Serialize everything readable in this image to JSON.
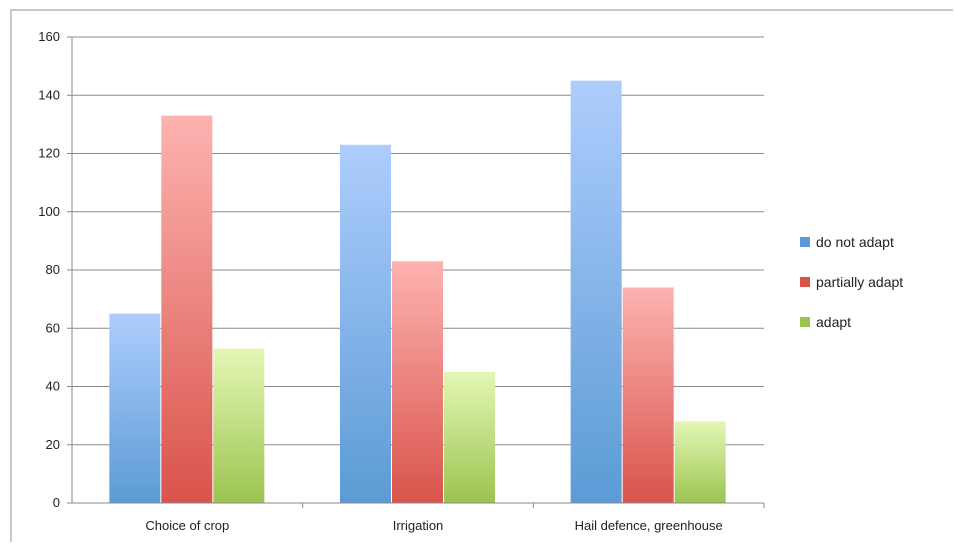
{
  "chart_data": {
    "type": "bar",
    "title": "",
    "xlabel": "",
    "ylabel": "",
    "categories": [
      "Choice of crop",
      "Irrigation",
      "Hail defence, greenhouse"
    ],
    "series": [
      {
        "name": "do not adapt",
        "values": [
          65,
          123,
          145
        ],
        "color": "#5b9bd5",
        "color_light": "#aecdfd"
      },
      {
        "name": "partially adapt",
        "values": [
          133,
          83,
          74
        ],
        "color": "#d9534b",
        "color_light": "#fdb3b0"
      },
      {
        "name": "adapt",
        "values": [
          53,
          45,
          28
        ],
        "color": "#9bc44f",
        "color_light": "#e4f7b6"
      }
    ],
    "ylim": [
      0,
      160
    ],
    "yticks": [
      0,
      20,
      40,
      60,
      80,
      100,
      120,
      140,
      160
    ],
    "grid": true,
    "legend": "right"
  }
}
